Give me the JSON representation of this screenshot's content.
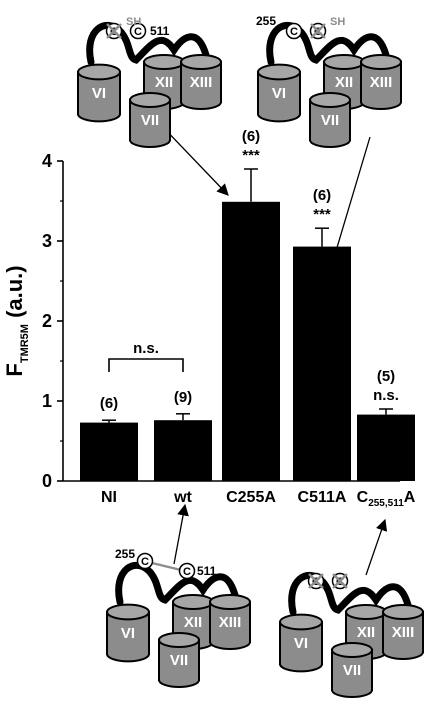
{
  "chart_data": {
    "type": "bar",
    "ylabel_main": "F",
    "ylabel_sub": "TMR5M",
    "ylabel_tail": " (a.u.)",
    "ylim": [
      0,
      4
    ],
    "yticks": [
      "0",
      "1",
      "2",
      "3",
      "4"
    ],
    "categories": [
      "NI",
      "wt",
      "C255A",
      "C511A",
      "C"
    ],
    "category_subscripts": [
      "",
      "",
      "",
      "",
      "255,511"
    ],
    "category_suffixes": [
      "",
      "",
      "",
      "",
      "A"
    ],
    "values": [
      0.73,
      0.76,
      3.49,
      2.93,
      0.83
    ],
    "errors": [
      0.03,
      0.08,
      0.41,
      0.23,
      0.07
    ],
    "n_labels": [
      "(6)",
      "(9)",
      "(6)",
      "(6)",
      "(5)"
    ],
    "significance": [
      "",
      "",
      "***",
      "***",
      "n.s."
    ],
    "bracket_label": "n.s.",
    "colors": {
      "bar": "#000000",
      "helix": "#8c8c8c",
      "helix_top": "#a6a6a6",
      "loop": "#000000"
    }
  },
  "diagrams": [
    {
      "helices": [
        "VI",
        "VII",
        "XII",
        "XIII"
      ],
      "residues": [
        "511"
      ],
      "sh_label": "SH",
      "cys_symbol": "C",
      "crossed": [
        "first"
      ]
    },
    {
      "helices": [
        "VI",
        "VII",
        "XII",
        "XIII"
      ],
      "residues": [
        "255"
      ],
      "sh_label": "SH",
      "cys_symbol": "C",
      "crossed": [
        "second"
      ]
    },
    {
      "helices": [
        "VI",
        "VII",
        "XII",
        "XIII"
      ],
      "residues": [
        "255",
        "511"
      ],
      "cys_symbol": "C",
      "crossed": []
    },
    {
      "helices": [
        "VI",
        "VII",
        "XII",
        "XIII"
      ],
      "residues": [],
      "cys_symbol": "C",
      "crossed": [
        "first",
        "second"
      ]
    }
  ]
}
